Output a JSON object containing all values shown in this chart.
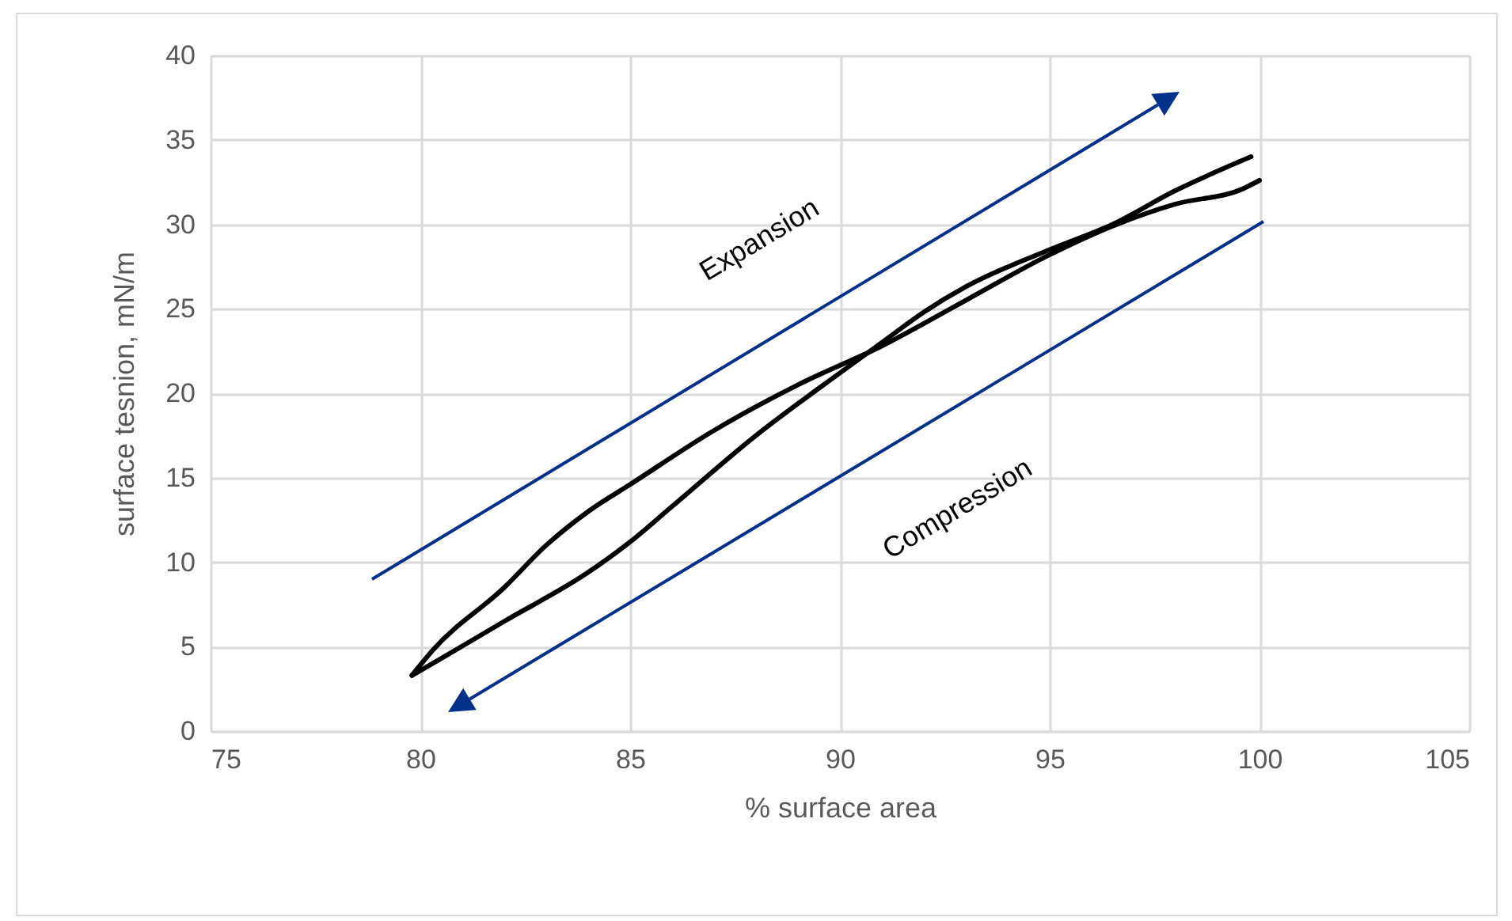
{
  "chart_data": {
    "type": "line",
    "xlabel": "% surface area",
    "ylabel": "surface tesnion, mN/m",
    "xlim": [
      75,
      105
    ],
    "xticks": [
      75,
      80,
      85,
      90,
      95,
      100,
      105
    ],
    "ylim": [
      0,
      40
    ],
    "yticks": [
      0,
      5,
      10,
      15,
      20,
      25,
      30,
      35,
      40
    ],
    "grid": true,
    "legend": false,
    "annotations": [
      "Expansion",
      "Compression"
    ],
    "series": [
      {
        "color": "#000000",
        "x": [
          79.8,
          80.3,
          82,
          83,
          84,
          85,
          87,
          89,
          91,
          93,
          95,
          96.5,
          98,
          99.6,
          100
        ],
        "values": [
          3.3,
          4.8,
          8.5,
          11,
          13,
          14.6,
          17.8,
          20.5,
          22.8,
          25.5,
          28.2,
          29.9,
          31.2,
          32.1,
          32.6
        ]
      },
      {
        "color": "#000000",
        "x": [
          79.8,
          80.5,
          82,
          84,
          85,
          86,
          88,
          90,
          91,
          92,
          93,
          95,
          96.5,
          98,
          99.8
        ],
        "values": [
          3.3,
          4.3,
          6.5,
          9.4,
          11.2,
          13.3,
          17.5,
          21.2,
          23,
          24.8,
          26.3,
          28.5,
          30,
          32,
          34
        ]
      }
    ]
  }
}
